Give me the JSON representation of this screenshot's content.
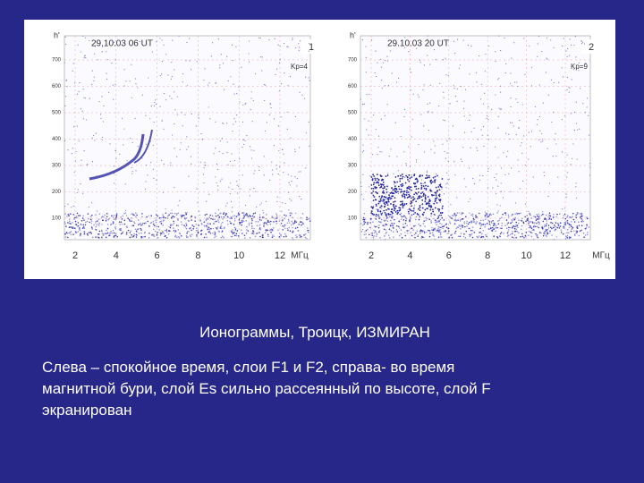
{
  "panels": [
    {
      "number": "1",
      "timestamp": "29.10.03 06 UT",
      "kp": "Kp=4",
      "y_axis_label": "h'",
      "x_unit": "МГц",
      "xticks": [
        2,
        4,
        6,
        8,
        10,
        12
      ],
      "yticks": [
        100,
        200,
        300,
        400,
        500,
        600,
        700
      ]
    },
    {
      "number": "2",
      "timestamp": "29.10.03 20 UT",
      "kp": "Kp=9",
      "y_axis_label": "h'",
      "x_unit": "МГц",
      "xticks": [
        2,
        4,
        6,
        8,
        10,
        12
      ],
      "yticks": [
        100,
        200,
        300,
        400,
        500,
        600,
        700
      ]
    }
  ],
  "caption": "Ионограммы, Троицк, ИЗМИРАН",
  "paragraph": {
    "lines": [
      "Слева – спокойное время, слои F1 и F2, справа- во время",
      "магнитной бури, слой Es  сильно рассеянный по высоте,  слой F",
      "экранирован"
    ]
  }
}
